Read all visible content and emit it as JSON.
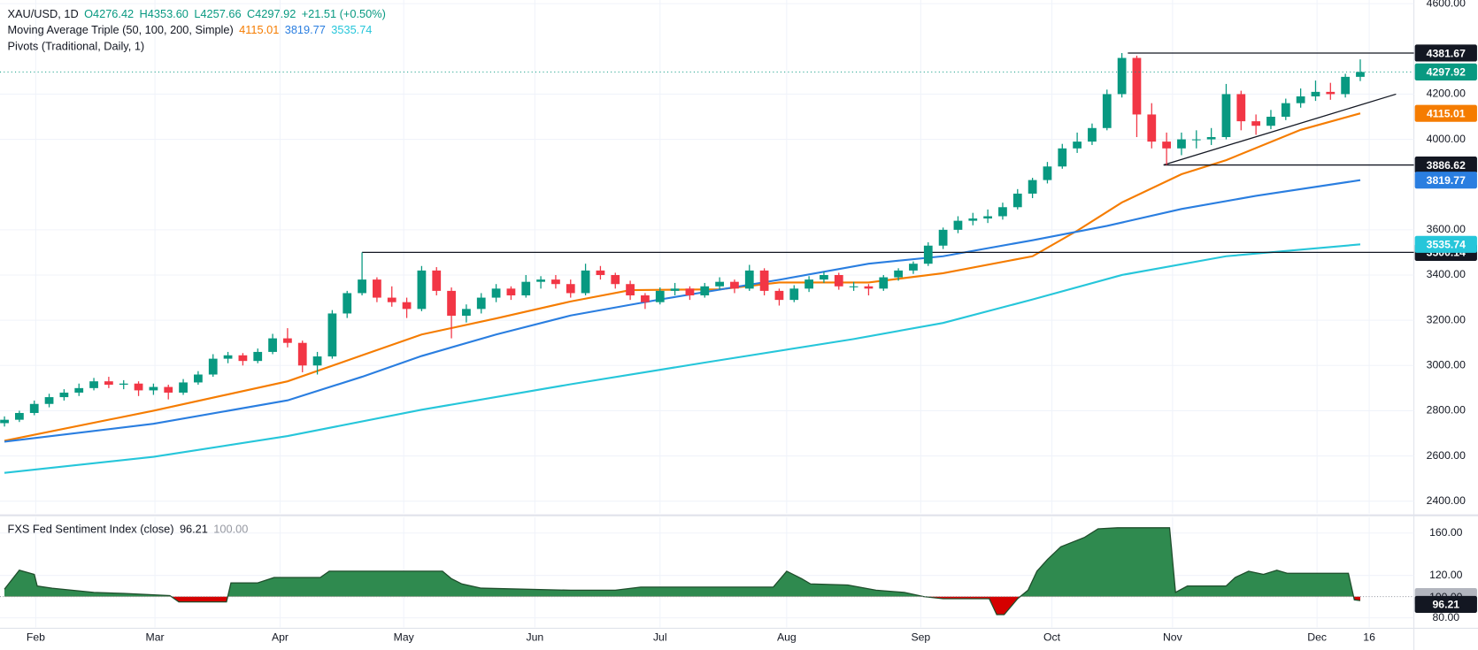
{
  "chart_data": [
    {
      "type": "candlestick",
      "legend": {
        "symbol": "XAU/USD, 1D",
        "ohlc_labels": [
          "O4276.42",
          "H4353.60",
          "L4257.66",
          "C4297.92"
        ],
        "change": "+21.51 (+0.50%)"
      },
      "indicator_title": "Moving Average Triple (50, 100, 200, Simple)",
      "pivots_title": "Pivots (Traditional, Daily, 1)",
      "up_color": "#089981",
      "down_color": "#f23645",
      "xlim": [
        -0.3,
        94.6
      ],
      "ylim": [
        2346,
        4616
      ],
      "yticks": [
        {
          "value": 4600,
          "label": "4600.00"
        },
        {
          "value": 4200,
          "label": "4200.00"
        },
        {
          "value": 4000,
          "label": "4000.00"
        },
        {
          "value": 3600,
          "label": "3600.00"
        },
        {
          "value": 3400,
          "label": "3400.00"
        },
        {
          "value": 3200,
          "label": "3200.00"
        },
        {
          "value": 3000,
          "label": "3000.00"
        },
        {
          "value": 2800,
          "label": "2800.00"
        },
        {
          "value": 2600,
          "label": "2600.00"
        },
        {
          "value": 2400,
          "label": "2400.00"
        }
      ],
      "xticks": [
        {
          "value": 2.1,
          "label": "Feb"
        },
        {
          "value": 10.1,
          "label": "Mar"
        },
        {
          "value": 18.5,
          "label": "Apr"
        },
        {
          "value": 26.8,
          "label": "May"
        },
        {
          "value": 35.6,
          "label": "Jun"
        },
        {
          "value": 44,
          "label": "Jul"
        },
        {
          "value": 52.5,
          "label": "Aug"
        },
        {
          "value": 61.5,
          "label": "Sep"
        },
        {
          "value": 70.3,
          "label": "Oct"
        },
        {
          "value": 78.4,
          "label": "Nov"
        },
        {
          "value": 88.1,
          "label": "Dec"
        },
        {
          "value": 91.6,
          "label": "16"
        }
      ],
      "grid": true,
      "ohlc": [
        [
          2745,
          2775,
          2730,
          2760
        ],
        [
          2760,
          2800,
          2750,
          2790
        ],
        [
          2790,
          2845,
          2780,
          2830
        ],
        [
          2830,
          2875,
          2815,
          2860
        ],
        [
          2860,
          2895,
          2845,
          2880
        ],
        [
          2880,
          2920,
          2865,
          2900
        ],
        [
          2900,
          2945,
          2890,
          2930
        ],
        [
          2930,
          2950,
          2900,
          2915
        ],
        [
          2915,
          2935,
          2895,
          2920
        ],
        [
          2920,
          2930,
          2865,
          2890
        ],
        [
          2890,
          2920,
          2870,
          2905
        ],
        [
          2905,
          2915,
          2850,
          2880
        ],
        [
          2880,
          2940,
          2870,
          2925
        ],
        [
          2925,
          2975,
          2915,
          2960
        ],
        [
          2960,
          3050,
          2950,
          3030
        ],
        [
          3030,
          3060,
          3010,
          3045
        ],
        [
          3045,
          3055,
          3000,
          3020
        ],
        [
          3020,
          3075,
          3010,
          3060
        ],
        [
          3060,
          3140,
          3050,
          3120
        ],
        [
          3120,
          3165,
          3080,
          3100
        ],
        [
          3100,
          3110,
          2970,
          3000
        ],
        [
          3000,
          3060,
          2960,
          3040
        ],
        [
          3040,
          3245,
          3030,
          3230
        ],
        [
          3230,
          3330,
          3210,
          3320
        ],
        [
          3320,
          3500,
          3310,
          3380
        ],
        [
          3380,
          3390,
          3280,
          3300
        ],
        [
          3300,
          3350,
          3260,
          3280
        ],
        [
          3280,
          3300,
          3210,
          3250
        ],
        [
          3250,
          3440,
          3240,
          3420
        ],
        [
          3420,
          3435,
          3310,
          3330
        ],
        [
          3330,
          3345,
          3120,
          3220
        ],
        [
          3220,
          3270,
          3190,
          3250
        ],
        [
          3250,
          3320,
          3230,
          3300
        ],
        [
          3300,
          3360,
          3280,
          3340
        ],
        [
          3340,
          3350,
          3290,
          3310
        ],
        [
          3310,
          3400,
          3300,
          3370
        ],
        [
          3370,
          3395,
          3340,
          3380
        ],
        [
          3380,
          3400,
          3340,
          3360
        ],
        [
          3360,
          3380,
          3300,
          3320
        ],
        [
          3320,
          3450,
          3310,
          3420
        ],
        [
          3420,
          3440,
          3380,
          3400
        ],
        [
          3400,
          3410,
          3340,
          3360
        ],
        [
          3360,
          3375,
          3290,
          3310
        ],
        [
          3310,
          3320,
          3250,
          3280
        ],
        [
          3280,
          3345,
          3270,
          3330
        ],
        [
          3330,
          3365,
          3310,
          3340
        ],
        [
          3340,
          3350,
          3290,
          3310
        ],
        [
          3310,
          3365,
          3300,
          3350
        ],
        [
          3350,
          3390,
          3335,
          3370
        ],
        [
          3370,
          3380,
          3320,
          3340
        ],
        [
          3340,
          3445,
          3330,
          3420
        ],
        [
          3420,
          3430,
          3310,
          3330
        ],
        [
          3330,
          3340,
          3265,
          3290
        ],
        [
          3290,
          3355,
          3280,
          3340
        ],
        [
          3340,
          3395,
          3325,
          3380
        ],
        [
          3380,
          3415,
          3365,
          3400
        ],
        [
          3400,
          3410,
          3335,
          3350
        ],
        [
          3350,
          3370,
          3330,
          3350
        ],
        [
          3350,
          3360,
          3310,
          3340
        ],
        [
          3340,
          3400,
          3330,
          3390
        ],
        [
          3390,
          3430,
          3375,
          3420
        ],
        [
          3420,
          3460,
          3405,
          3450
        ],
        [
          3450,
          3545,
          3440,
          3530
        ],
        [
          3530,
          3610,
          3515,
          3600
        ],
        [
          3600,
          3660,
          3585,
          3640
        ],
        [
          3640,
          3675,
          3620,
          3650
        ],
        [
          3650,
          3690,
          3630,
          3660
        ],
        [
          3660,
          3720,
          3645,
          3700
        ],
        [
          3700,
          3780,
          3690,
          3760
        ],
        [
          3760,
          3830,
          3740,
          3820
        ],
        [
          3820,
          3900,
          3805,
          3880
        ],
        [
          3880,
          3980,
          3870,
          3960
        ],
        [
          3960,
          4030,
          3940,
          3990
        ],
        [
          3990,
          4070,
          3975,
          4050
        ],
        [
          4050,
          4220,
          4040,
          4200
        ],
        [
          4200,
          4381.67,
          4185,
          4360
        ],
        [
          4360,
          4370,
          4010,
          4110
        ],
        [
          4110,
          4160,
          3960,
          3990
        ],
        [
          3990,
          4030,
          3886.62,
          3960
        ],
        [
          3960,
          4030,
          3930,
          4000
        ],
        [
          4000,
          4040,
          3960,
          4000
        ],
        [
          4000,
          4050,
          3975,
          4010
        ],
        [
          4010,
          4245,
          4000,
          4200
        ],
        [
          4200,
          4215,
          4040,
          4080
        ],
        [
          4080,
          4110,
          4020,
          4060
        ],
        [
          4060,
          4130,
          4045,
          4100
        ],
        [
          4100,
          4180,
          4085,
          4160
        ],
        [
          4160,
          4225,
          4140,
          4190
        ],
        [
          4190,
          4260,
          4170,
          4210
        ],
        [
          4210,
          4250,
          4175,
          4200
        ],
        [
          4200,
          4290,
          4185,
          4276.41
        ],
        [
          4276.42,
          4353.6,
          4257.66,
          4297.92
        ]
      ],
      "lines": [
        {
          "color": "#f57c00",
          "x": [
            0,
            10,
            19,
            24,
            28,
            33,
            38,
            42,
            48,
            52,
            58,
            63,
            69,
            72,
            75,
            79,
            82,
            87,
            91
          ],
          "values": [
            2667,
            2800,
            2930,
            3045,
            3137,
            3208,
            3283,
            3333,
            3337,
            3367,
            3367,
            3408,
            3483,
            3596,
            3721,
            3846,
            3908,
            4042,
            4115.01
          ]
        },
        {
          "color": "#2a7ee0",
          "x": [
            0,
            10,
            19,
            24,
            28,
            33,
            38,
            44,
            52,
            58,
            63,
            69,
            74,
            79,
            84,
            91
          ],
          "values": [
            2663,
            2742,
            2846,
            2950,
            3042,
            3137,
            3221,
            3292,
            3379,
            3450,
            3483,
            3554,
            3617,
            3692,
            3750,
            3819.77
          ]
        },
        {
          "color": "#26c6da",
          "x": [
            0,
            10,
            19,
            28,
            38,
            47,
            57,
            63,
            69,
            75,
            82,
            91
          ],
          "values": [
            2525,
            2596,
            2688,
            2804,
            2917,
            3013,
            3117,
            3188,
            3292,
            3400,
            3483,
            3535.74
          ]
        }
      ],
      "levels": [
        {
          "value": 4381.67,
          "x_start": 75.4
        },
        {
          "value": 3886.62,
          "x_start": 77.8
        },
        {
          "value": 3500.14,
          "x_start": 24
        }
      ],
      "trendline": {
        "x": [
          77.8,
          93.4
        ],
        "values": [
          3887,
          4200
        ]
      }
    },
    {
      "type": "baseline-area",
      "title": "FXS Fed Sentiment Index (close)",
      "baseline": {
        "value": 100,
        "label": "100.00"
      },
      "up_color": "#2f8a4f",
      "down_color": "#d50000",
      "line_color": "#1e4d2b",
      "ylim": [
        71,
        175
      ],
      "yticks": [
        {
          "value": 160,
          "label": "160.00"
        },
        {
          "value": 120,
          "label": "120.00"
        },
        {
          "value": 80,
          "label": "80.00"
        }
      ],
      "x": [
        0,
        1,
        2,
        2.2,
        3.2,
        6,
        8,
        11.1,
        11.7,
        14.9,
        15.2,
        17,
        18.1,
        21.2,
        21.8,
        29.4,
        30,
        30.7,
        32,
        38,
        41,
        42.7,
        51.6,
        52.5,
        53.5,
        54.1,
        56.6,
        58.5,
        60.4,
        61.7,
        63,
        66.1,
        66.6,
        67.1,
        68,
        68.7,
        69.3,
        70,
        70.9,
        72.5,
        73.4,
        74.7,
        78.2,
        78.6,
        79.4,
        82,
        82.6,
        83.5,
        84.5,
        85.4,
        86.1,
        90.2,
        90.6,
        91
      ],
      "values": [
        107,
        125,
        121,
        110,
        108,
        104,
        103,
        101,
        95,
        95,
        113,
        113,
        118,
        118,
        124,
        124,
        117,
        112,
        108,
        106,
        106,
        109,
        109,
        124,
        117,
        112,
        111,
        106,
        104,
        100,
        98,
        98,
        83,
        83,
        98,
        106,
        124,
        135,
        147,
        156,
        164,
        165,
        165,
        104,
        110,
        110,
        118,
        124,
        121,
        125,
        122,
        122,
        97,
        96.21
      ]
    }
  ]
}
